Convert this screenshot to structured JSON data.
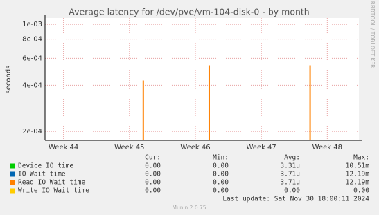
{
  "chart_data": {
    "type": "line",
    "title": "Average latency for /dev/pve/vm-104-disk-0 - by month",
    "y_label": "seconds",
    "side_note": "RRDTOOL / TOBI OETIKER",
    "log_y": true,
    "grid": true,
    "ylim": [
      0.000175,
      0.0011
    ],
    "yticks": [
      {
        "value": 0.001,
        "label": "1e-03"
      },
      {
        "value": 0.0008,
        "label": "8e-04"
      },
      {
        "value": 0.0006,
        "label": "6e-04"
      },
      {
        "value": 0.0004,
        "label": "4e-04"
      },
      {
        "value": 0.0002,
        "label": "2e-04"
      }
    ],
    "xlim": [
      43.72,
      48.48
    ],
    "xticks": [
      {
        "value": 44,
        "label": "Week 44"
      },
      {
        "value": 45,
        "label": "Week 45"
      },
      {
        "value": 46,
        "label": "Week 46"
      },
      {
        "value": 47,
        "label": "Week 47"
      },
      {
        "value": 48,
        "label": "Week 48"
      }
    ],
    "legend_headers": [
      "Cur:",
      "Min:",
      "Avg:",
      "Max:"
    ],
    "series": [
      {
        "name": "Device IO time",
        "color": "#00cc00",
        "x": [],
        "values": [],
        "stats": [
          "0.00",
          "0.00",
          "3.31u",
          "10.51m"
        ]
      },
      {
        "name": "IO Wait time",
        "color": "#0066b3",
        "x": [],
        "values": [],
        "stats": [
          "0.00",
          "0.00",
          "3.71u",
          "12.19m"
        ]
      },
      {
        "name": "Read IO Wait time",
        "color": "#ff8000",
        "x": [
          45.21,
          46.21,
          47.74
        ],
        "values": [
          0.00043,
          0.00054,
          0.00054
        ],
        "stats": [
          "0.00",
          "0.00",
          "3.71u",
          "12.19m"
        ]
      },
      {
        "name": "Write IO Wait time",
        "color": "#ffcc00",
        "x": [],
        "values": [],
        "stats": [
          "0.00",
          "0.00",
          "0.00",
          "0.00"
        ]
      }
    ],
    "last_update": "Last update: Sat Nov 30 18:00:11 2024",
    "footer": "Munin 2.0.75"
  }
}
